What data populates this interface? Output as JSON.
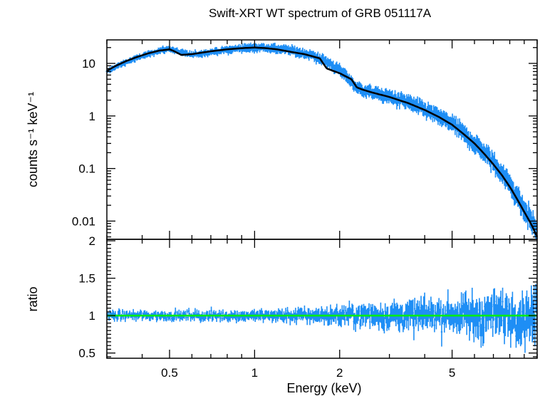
{
  "chart_data": [
    {
      "type": "scatter",
      "panel": "spectrum",
      "title": "Swift-XRT WT spectrum of GRB 051117A",
      "ylabel": "counts s⁻¹ keV⁻¹",
      "xlabel": "",
      "xscale": "log",
      "yscale": "log",
      "xlim": [
        0.3,
        10
      ],
      "ylim": [
        0.0045,
        28
      ],
      "yticks": [
        0.01,
        0.1,
        1,
        10
      ],
      "ytick_labels": [
        "0.01",
        "0.1",
        "1",
        "10"
      ],
      "colors": {
        "data": "#1E8EF5",
        "model": "#000000"
      },
      "series": [
        {
          "role": "data",
          "x": [
            0.3,
            0.32,
            0.35,
            0.38,
            0.42,
            0.46,
            0.5,
            0.55,
            0.6,
            0.7,
            0.8,
            0.9,
            1.0,
            1.1,
            1.2,
            1.35,
            1.5,
            1.7,
            1.9,
            2.1,
            2.3,
            2.6,
            3.0,
            3.5,
            4.0,
            4.5,
            5.0,
            5.5,
            6.0,
            6.5,
            7.0,
            7.5,
            8.0,
            8.5,
            9.0,
            9.5,
            10.0
          ],
          "y": [
            6.8,
            8.5,
            10.5,
            12.5,
            15,
            17.5,
            19,
            16,
            14.5,
            16.5,
            18,
            19.5,
            20,
            20,
            19,
            17.5,
            15.5,
            12.5,
            9,
            6,
            3.4,
            2.8,
            2.3,
            1.8,
            1.3,
            0.95,
            0.7,
            0.45,
            0.3,
            0.2,
            0.13,
            0.08,
            0.05,
            0.03,
            0.016,
            0.011,
            0.006
          ]
        },
        {
          "role": "model",
          "x": [
            0.3,
            0.32,
            0.35,
            0.38,
            0.42,
            0.46,
            0.5,
            0.52,
            0.55,
            0.6,
            0.7,
            0.8,
            0.9,
            1.0,
            1.1,
            1.2,
            1.35,
            1.5,
            1.7,
            1.8,
            2.0,
            2.2,
            2.3,
            2.4,
            2.6,
            3.0,
            3.5,
            4.0,
            4.5,
            5.0,
            5.5,
            6.0,
            6.5,
            7.0,
            7.5,
            8.0,
            8.5,
            9.0,
            9.5,
            10.0
          ],
          "y": [
            7.2,
            8.8,
            11,
            13,
            15.5,
            17.5,
            18.5,
            17,
            14.5,
            15,
            17,
            18.5,
            19.5,
            20,
            19.5,
            18.5,
            16.5,
            15,
            12.5,
            8,
            6.5,
            5,
            3.5,
            3.2,
            2.8,
            2.3,
            1.75,
            1.3,
            0.95,
            0.68,
            0.45,
            0.3,
            0.19,
            0.12,
            0.075,
            0.045,
            0.026,
            0.015,
            0.009,
            0.005
          ]
        }
      ]
    },
    {
      "type": "scatter",
      "panel": "ratio",
      "title": "",
      "ylabel": "ratio",
      "xlabel": "Energy (keV)",
      "xscale": "log",
      "yscale": "linear",
      "xlim": [
        0.3,
        10
      ],
      "ylim": [
        0.43,
        2.02
      ],
      "yticks": [
        0.5,
        1,
        1.5,
        2
      ],
      "ytick_labels": [
        "0.5",
        "1",
        "1.5",
        "2"
      ],
      "xticks": [
        0.5,
        1,
        2,
        5
      ],
      "xtick_labels": [
        "0.5",
        "1",
        "2",
        "5"
      ],
      "reference_line": 1,
      "colors": {
        "data": "#1E8EF5",
        "reference": "#00EE00"
      },
      "noise_profile": {
        "x": [
          0.3,
          0.6,
          1.0,
          1.5,
          2.0,
          3.0,
          5.0,
          7.0,
          10.0
        ],
        "spread": [
          0.08,
          0.08,
          0.09,
          0.12,
          0.16,
          0.22,
          0.28,
          0.35,
          0.45
        ]
      }
    }
  ]
}
